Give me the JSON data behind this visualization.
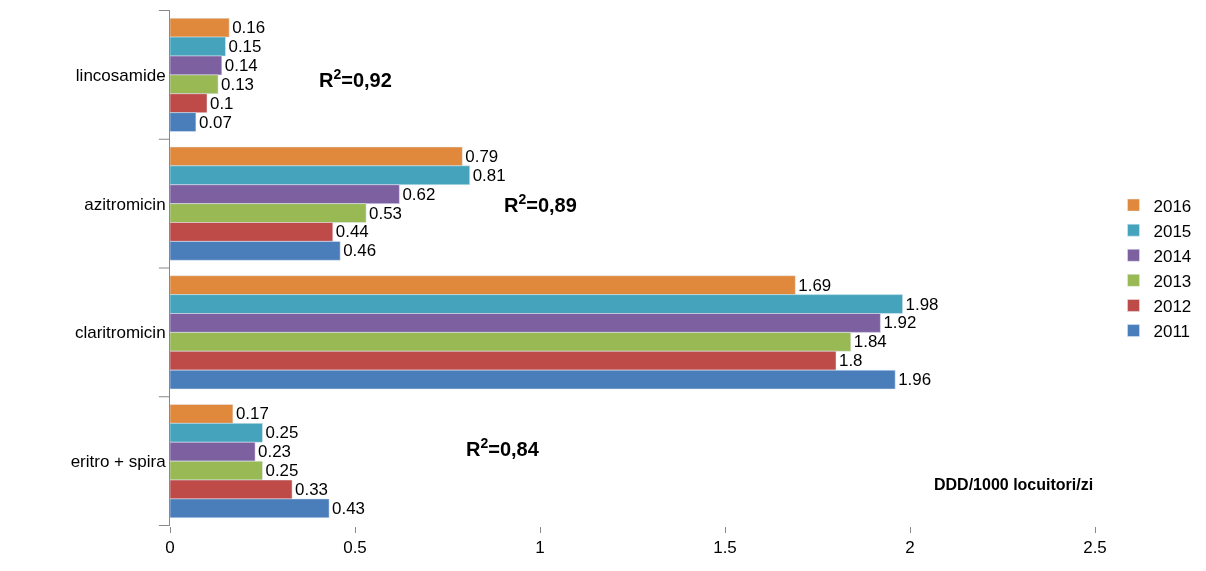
{
  "chart_data": {
    "type": "bar",
    "orientation": "horizontal",
    "categories": [
      "lincosamide",
      "azitromicin",
      "claritromicin",
      "eritro + spira"
    ],
    "series": [
      {
        "name": "2016",
        "color": "#e0883c",
        "values": [
          0.16,
          0.79,
          1.69,
          0.17
        ]
      },
      {
        "name": "2015",
        "color": "#45a3bb",
        "values": [
          0.15,
          0.81,
          1.98,
          0.25
        ]
      },
      {
        "name": "2014",
        "color": "#7d60a0",
        "values": [
          0.14,
          0.62,
          1.92,
          0.23
        ]
      },
      {
        "name": "2013",
        "color": "#98b954",
        "values": [
          0.13,
          0.53,
          1.84,
          0.25
        ]
      },
      {
        "name": "2012",
        "color": "#be4b48",
        "values": [
          0.1,
          0.44,
          1.8,
          0.33
        ]
      },
      {
        "name": "2011",
        "color": "#4a7ebb",
        "values": [
          0.07,
          0.46,
          1.96,
          0.43
        ]
      }
    ],
    "xlim": [
      0,
      2.5
    ],
    "xticks": [
      0,
      0.5,
      1,
      1.5,
      2,
      2.5
    ],
    "data_labels": true,
    "legend": "right",
    "annotations": [
      "R$^{2}$=0,92",
      "R$^{2}$=0,89",
      "R$^{2}$=0,84",
      "DDD/1000 locuitori/zi"
    ]
  }
}
